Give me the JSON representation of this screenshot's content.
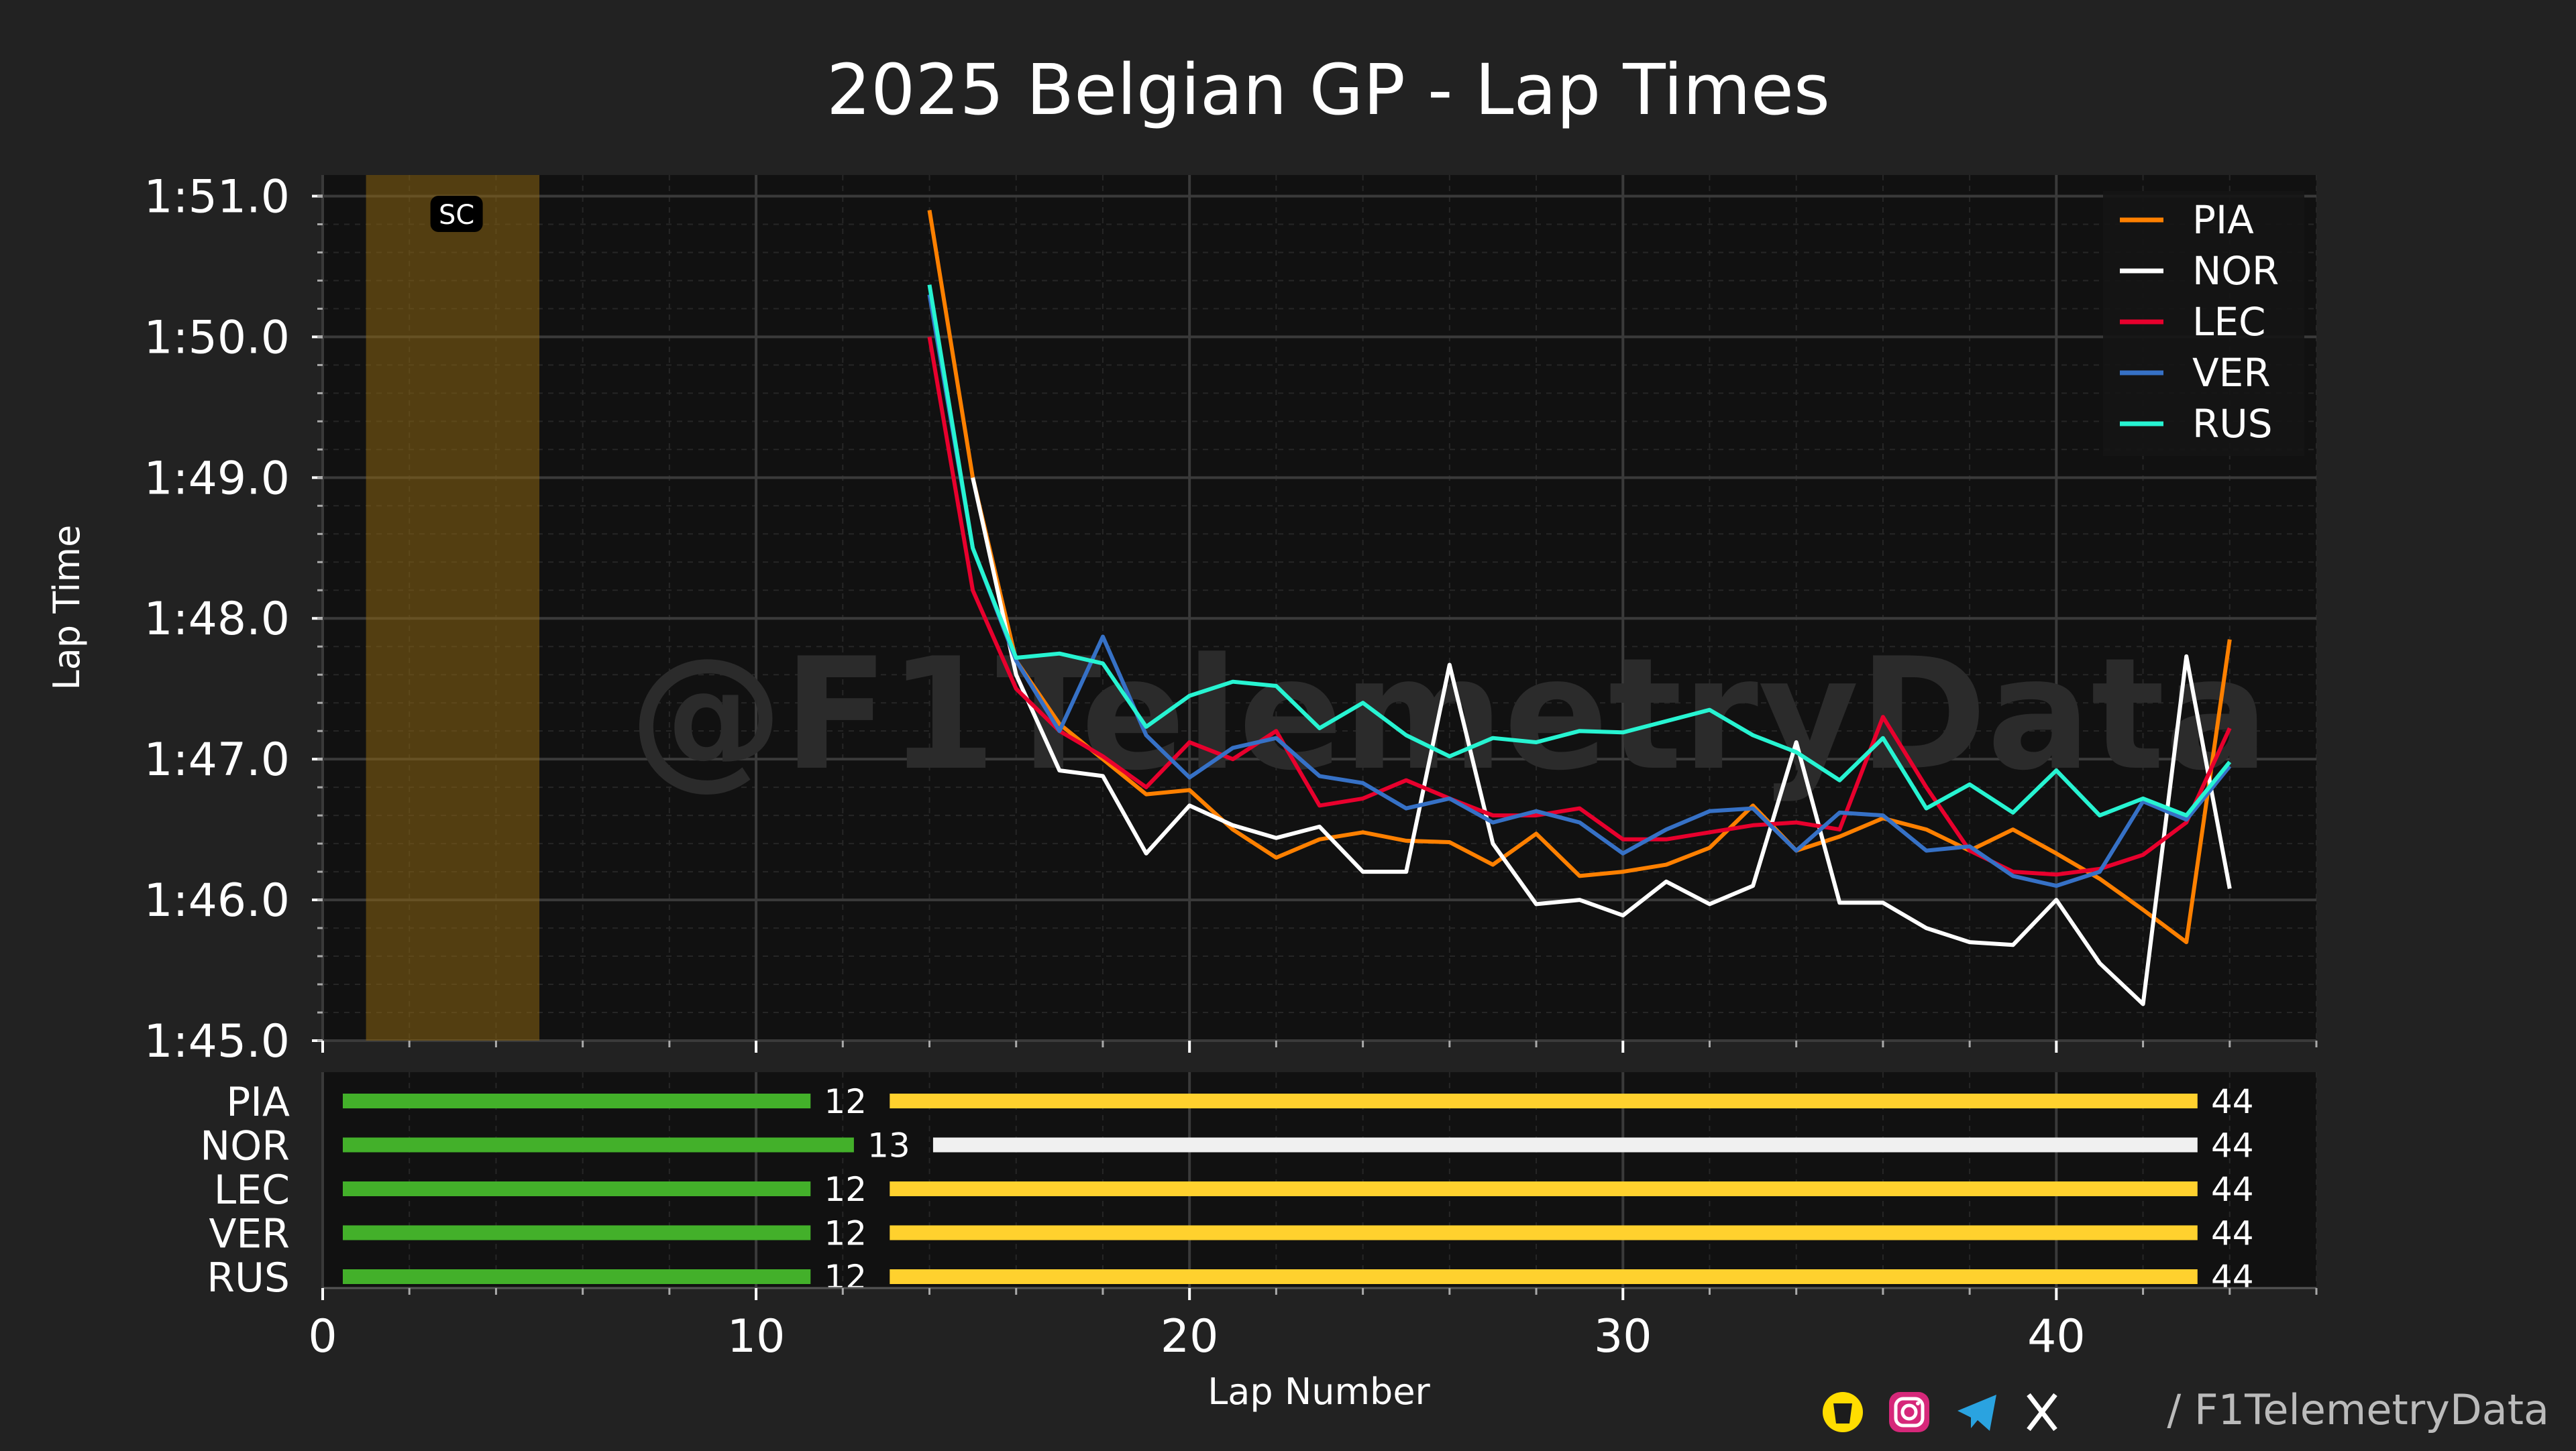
{
  "title": "2025 Belgian GP - Lap Times",
  "watermark": "@F1TelemetryData",
  "credit": "/ F1TelemetryData",
  "social_icons": [
    "buy-me-a-coffee-icon",
    "instagram-icon",
    "telegram-icon",
    "x-icon"
  ],
  "colors": {
    "background": "#222222",
    "plot_background": "#111111",
    "grid": "#3a3a3a",
    "sc_band": "#8a6412",
    "soft_tyre": "#ffffff",
    "medium_tyre": "#ffd12e",
    "inter_tyre": "#43b02a"
  },
  "chart_data": [
    {
      "type": "line",
      "title": "2025 Belgian GP - Lap Times",
      "xlabel": "Lap Number",
      "ylabel": "Lap Time",
      "xlim": [
        0,
        46
      ],
      "ylim": [
        105.0,
        111.15
      ],
      "yticks": [
        105,
        106,
        107,
        108,
        109,
        110,
        111
      ],
      "ytick_labels": [
        "1:45.0",
        "1:46.0",
        "1:47.0",
        "1:48.0",
        "1:49.0",
        "1:50.0",
        "1:51.0"
      ],
      "grid": true,
      "legend_position": "top-right",
      "annotations": [
        {
          "type": "span",
          "x_start": 1,
          "x_end": 5,
          "label": "SC"
        }
      ],
      "x": [
        14,
        15,
        16,
        17,
        18,
        19,
        20,
        21,
        22,
        23,
        24,
        25,
        26,
        27,
        28,
        29,
        30,
        31,
        32,
        33,
        34,
        35,
        36,
        37,
        38,
        39,
        40,
        41,
        42,
        43,
        44
      ],
      "series": [
        {
          "name": "PIA",
          "color": "#ff8000",
          "values": [
            110.9,
            109.0,
            107.7,
            107.25,
            107.0,
            106.75,
            106.78,
            106.5,
            106.3,
            106.43,
            106.48,
            106.42,
            106.41,
            106.25,
            106.47,
            106.17,
            106.2,
            106.25,
            106.37,
            106.67,
            106.35,
            106.45,
            106.58,
            106.5,
            106.35,
            106.5,
            106.33,
            106.15,
            105.93,
            105.7,
            107.85
          ]
        },
        {
          "name": "NOR",
          "color": "#ffffff",
          "values": [
            null,
            109.0,
            107.6,
            106.92,
            106.88,
            106.33,
            106.67,
            106.53,
            106.44,
            106.52,
            106.2,
            106.2,
            107.67,
            106.4,
            105.97,
            106.0,
            105.89,
            106.13,
            105.97,
            106.1,
            107.12,
            105.98,
            105.98,
            105.8,
            105.7,
            105.68,
            106.0,
            105.55,
            105.26,
            107.73,
            106.08
          ]
        },
        {
          "name": "LEC",
          "color": "#e8002d",
          "values": [
            110.0,
            108.2,
            107.5,
            107.2,
            107.02,
            106.8,
            107.12,
            107.0,
            107.2,
            106.67,
            106.72,
            106.85,
            106.72,
            106.6,
            106.6,
            106.65,
            106.43,
            106.43,
            106.48,
            106.53,
            106.55,
            106.5,
            107.3,
            106.8,
            106.35,
            106.2,
            106.18,
            106.22,
            106.32,
            106.55,
            107.22
          ]
        },
        {
          "name": "VER",
          "color": "#3671c6",
          "values": [
            110.3,
            108.5,
            107.7,
            107.2,
            107.87,
            107.17,
            106.87,
            107.08,
            107.15,
            106.88,
            106.83,
            106.65,
            106.72,
            106.55,
            106.63,
            106.55,
            106.33,
            106.5,
            106.63,
            106.65,
            106.35,
            106.62,
            106.6,
            106.35,
            106.38,
            106.17,
            106.1,
            106.2,
            106.7,
            106.57,
            106.95
          ]
        },
        {
          "name": "RUS",
          "color": "#27f4d2",
          "values": [
            110.37,
            108.5,
            107.72,
            107.75,
            107.68,
            107.23,
            107.45,
            107.55,
            107.52,
            107.22,
            107.4,
            107.17,
            107.02,
            107.15,
            107.12,
            107.2,
            107.19,
            107.27,
            107.35,
            107.17,
            107.05,
            106.85,
            107.15,
            106.65,
            106.82,
            106.62,
            106.92,
            106.6,
            106.72,
            106.6,
            106.98
          ]
        }
      ]
    },
    {
      "type": "bar",
      "orientation": "horizontal",
      "xlabel": "Lap Number",
      "xlim": [
        0,
        46
      ],
      "xticks": [
        0,
        10,
        20,
        30,
        40
      ],
      "categories": [
        "PIA",
        "NOR",
        "LEC",
        "VER",
        "RUS"
      ],
      "stints": [
        {
          "driver": "PIA",
          "segments": [
            {
              "compound": "INTERMEDIATE",
              "color": "#43b02a",
              "start": 0,
              "end": 12,
              "end_label": "12"
            },
            {
              "compound": "MEDIUM",
              "color": "#ffd12e",
              "start": 12,
              "end": 44,
              "end_label": "44"
            }
          ]
        },
        {
          "driver": "NOR",
          "segments": [
            {
              "compound": "INTERMEDIATE",
              "color": "#43b02a",
              "start": 0,
              "end": 13,
              "end_label": "13"
            },
            {
              "compound": "HARD",
              "color": "#f0f0f0",
              "start": 13,
              "end": 44,
              "end_label": "44"
            }
          ]
        },
        {
          "driver": "LEC",
          "segments": [
            {
              "compound": "INTERMEDIATE",
              "color": "#43b02a",
              "start": 0,
              "end": 12,
              "end_label": "12"
            },
            {
              "compound": "MEDIUM",
              "color": "#ffd12e",
              "start": 12,
              "end": 44,
              "end_label": "44"
            }
          ]
        },
        {
          "driver": "VER",
          "segments": [
            {
              "compound": "INTERMEDIATE",
              "color": "#43b02a",
              "start": 0,
              "end": 12,
              "end_label": "12"
            },
            {
              "compound": "MEDIUM",
              "color": "#ffd12e",
              "start": 12,
              "end": 44,
              "end_label": "44"
            }
          ]
        },
        {
          "driver": "RUS",
          "segments": [
            {
              "compound": "INTERMEDIATE",
              "color": "#43b02a",
              "start": 0,
              "end": 12,
              "end_label": "12"
            },
            {
              "compound": "MEDIUM",
              "color": "#ffd12e",
              "start": 12,
              "end": 44,
              "end_label": "44"
            }
          ]
        }
      ]
    }
  ]
}
